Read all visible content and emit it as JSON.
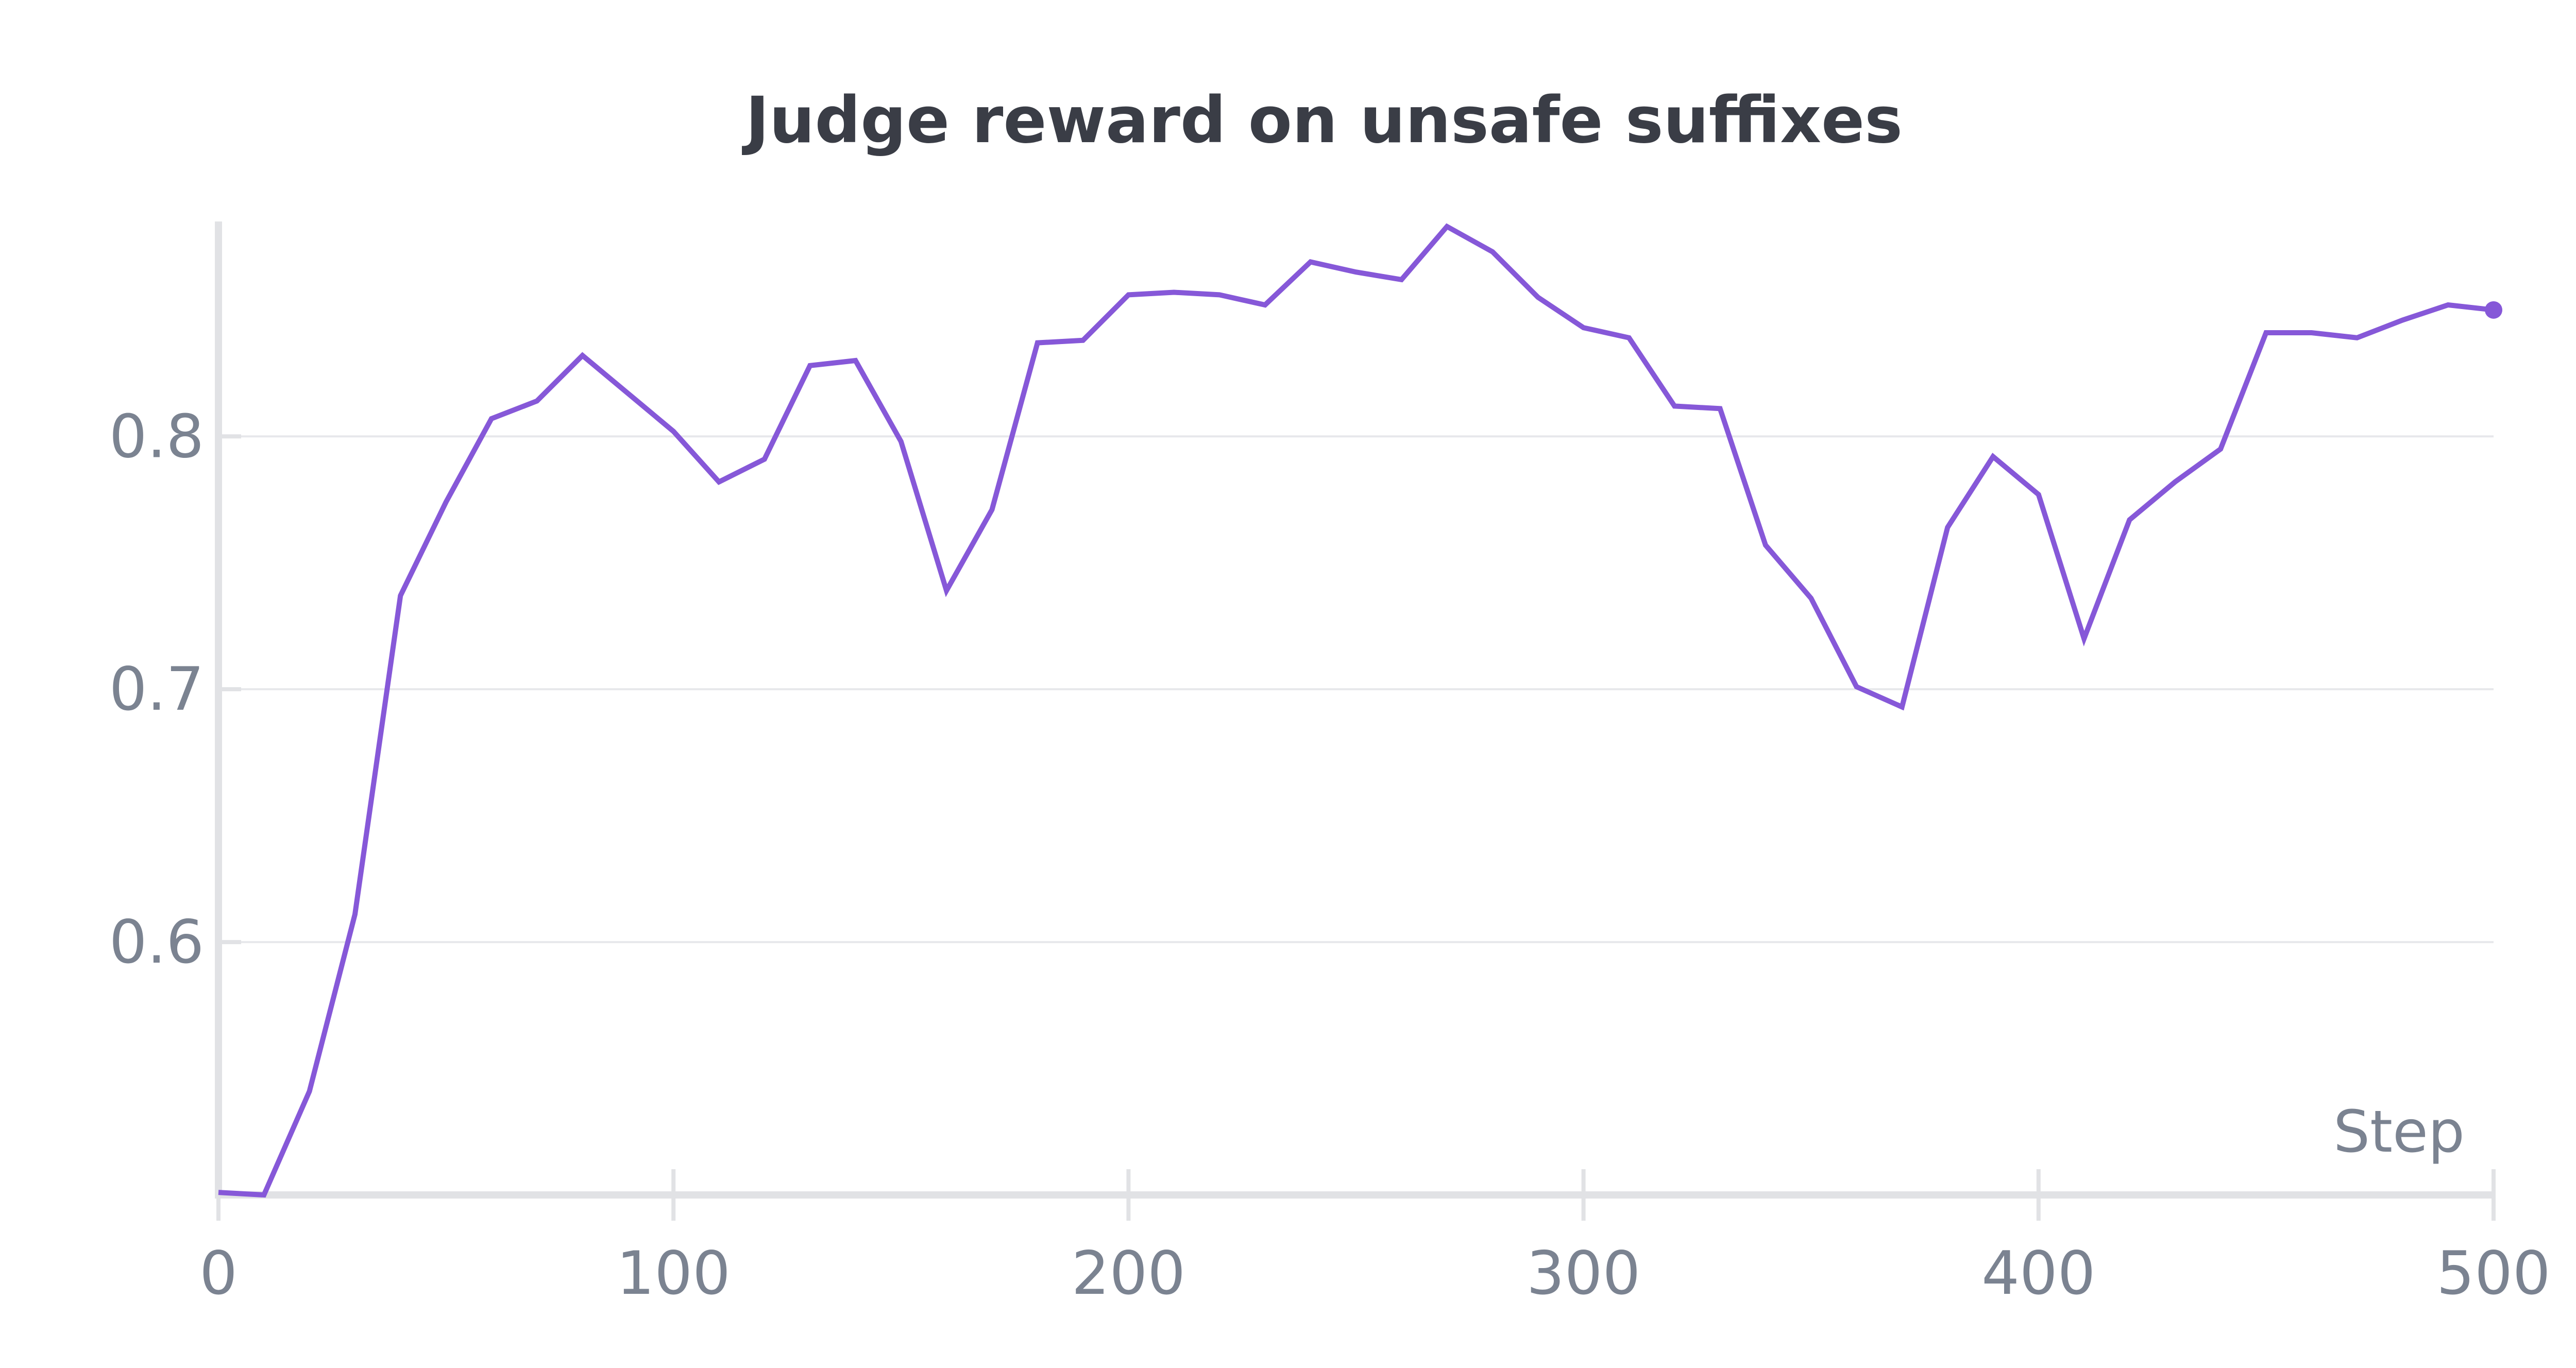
{
  "chart_data": {
    "type": "line",
    "title": "Judge reward on unsafe suffixes",
    "xlabel": "Step",
    "ylabel": "",
    "xlim": [
      0,
      500
    ],
    "ylim": [
      0.5,
      0.885
    ],
    "x_ticks": [
      0,
      100,
      200,
      300,
      400,
      500
    ],
    "x_tick_labels": [
      "0",
      "100",
      "200",
      "300",
      "400",
      "500"
    ],
    "y_ticks": [
      0.6,
      0.7,
      0.8
    ],
    "y_tick_labels": [
      "0.6",
      "0.7",
      "0.8"
    ],
    "grid": "horizontal",
    "legend": "none",
    "series": [
      {
        "color": "#8658d8",
        "x": [
          0,
          10,
          20,
          30,
          40,
          50,
          60,
          70,
          80,
          90,
          100,
          110,
          120,
          130,
          140,
          150,
          160,
          170,
          180,
          190,
          200,
          210,
          220,
          230,
          240,
          250,
          260,
          270,
          280,
          290,
          300,
          310,
          320,
          330,
          340,
          350,
          360,
          370,
          380,
          390,
          400,
          410,
          420,
          430,
          440,
          450,
          460,
          470,
          480,
          490,
          500
        ],
        "y": [
          0.501,
          0.5,
          0.541,
          0.611,
          0.737,
          0.774,
          0.807,
          0.814,
          0.832,
          0.817,
          0.802,
          0.782,
          0.791,
          0.828,
          0.83,
          0.798,
          0.739,
          0.771,
          0.837,
          0.838,
          0.856,
          0.857,
          0.856,
          0.852,
          0.869,
          0.865,
          0.862,
          0.883,
          0.873,
          0.855,
          0.843,
          0.839,
          0.812,
          0.811,
          0.757,
          0.736,
          0.701,
          0.693,
          0.764,
          0.792,
          0.777,
          0.72,
          0.767,
          0.782,
          0.795,
          0.841,
          0.841,
          0.839,
          0.846,
          0.852,
          0.85
        ]
      }
    ]
  }
}
